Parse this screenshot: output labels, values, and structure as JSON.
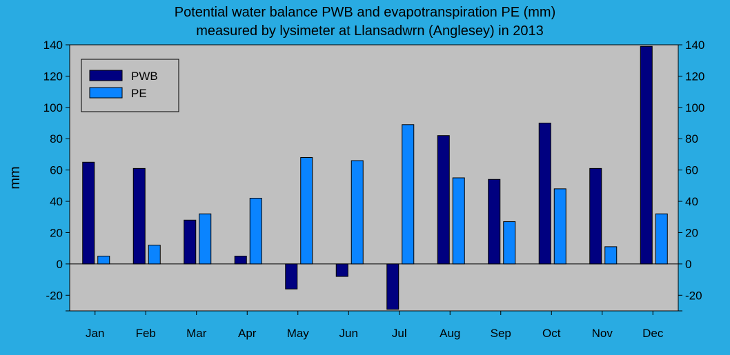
{
  "chart_data": {
    "type": "bar",
    "title": "Potential water balance PWB and evapotranspiration PE (mm)",
    "subtitle": "measured by lysimeter at Llansadwrn (Anglesey) in 2013",
    "ylabel": "mm",
    "xlabel": "",
    "ylim": [
      -30,
      140
    ],
    "yticks": [
      -20,
      0,
      20,
      40,
      60,
      80,
      100,
      120,
      140
    ],
    "categories": [
      "Jan",
      "Feb",
      "Mar",
      "Apr",
      "May",
      "Jun",
      "Jul",
      "Aug",
      "Sep",
      "Oct",
      "Nov",
      "Dec"
    ],
    "series": [
      {
        "name": "PWB",
        "color": "#000080",
        "values": [
          65,
          61,
          28,
          5,
          -16,
          -8,
          -29,
          82,
          54,
          90,
          61,
          139
        ]
      },
      {
        "name": "PE",
        "color": "#0a84ff",
        "values": [
          5,
          12,
          32,
          42,
          68,
          66,
          89,
          55,
          27,
          48,
          11,
          32
        ]
      }
    ],
    "grid": false,
    "legend_placement": "top-left",
    "colors": {
      "background": "#29abe2",
      "plot_area": "#c0c0c0"
    }
  }
}
